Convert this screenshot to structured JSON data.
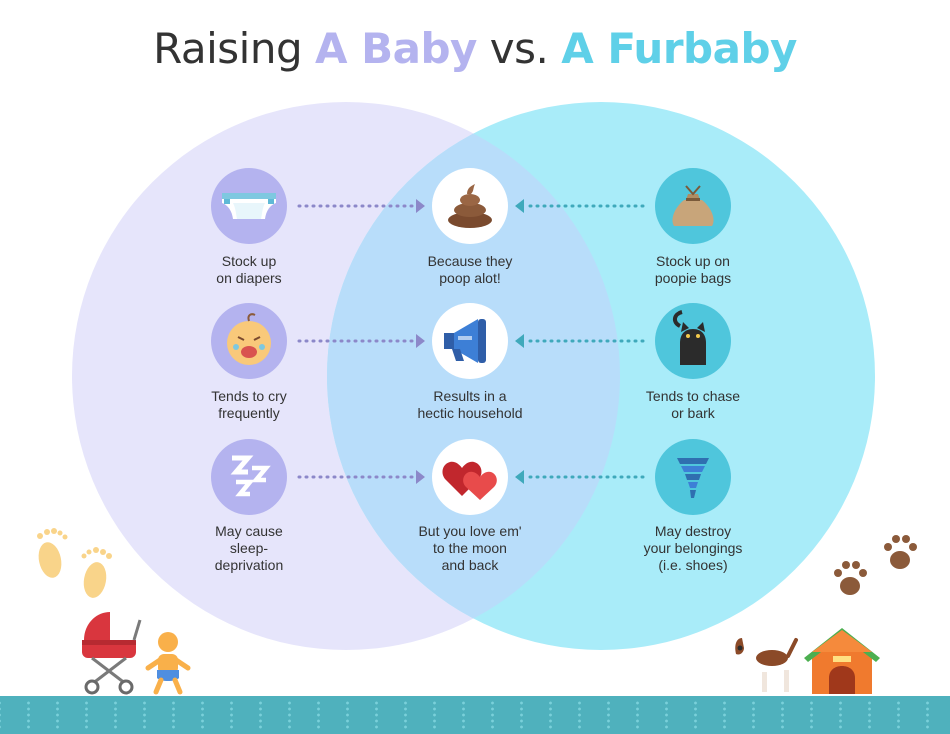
{
  "title": {
    "prefix": "Raising ",
    "baby": "A Baby",
    "mid": " vs. ",
    "fur": "A Furbaby"
  },
  "colors": {
    "baby_circle": "#e6e5fb",
    "fur_circle": "#a9ecf9",
    "overlap": "#b8ddfa",
    "baby_accent": "#b4b3ef",
    "fur_accent": "#5fd0e8",
    "footer": "#4fb1bd"
  },
  "rows": [
    {
      "left": {
        "icon": "diaper-icon",
        "label": "Stock up\non diapers"
      },
      "center": {
        "icon": "poop-icon",
        "label": "Because they\npoop alot!"
      },
      "right": {
        "icon": "poop-bag-icon",
        "label": "Stock up on\npoopie bags"
      }
    },
    {
      "left": {
        "icon": "crying-baby-icon",
        "label": "Tends to cry\nfrequently"
      },
      "center": {
        "icon": "megaphone-icon",
        "label": "Results in a\nhectic household"
      },
      "right": {
        "icon": "black-cat-icon",
        "label": "Tends to chase\nor bark"
      }
    },
    {
      "left": {
        "icon": "sleep-zzz-icon",
        "label": "May cause\nsleep-\ndeprivation"
      },
      "center": {
        "icon": "hearts-icon",
        "label": "But you love em'\nto the moon\nand back"
      },
      "right": {
        "icon": "tornado-icon",
        "label": "May destroy\nyour belongings\n(i.e. shoes)"
      }
    }
  ],
  "decorations": [
    "baby-footprints-icon",
    "stroller-icon",
    "baby-icon",
    "paw-prints-icon",
    "beagle-dog-icon",
    "doghouse-icon"
  ]
}
